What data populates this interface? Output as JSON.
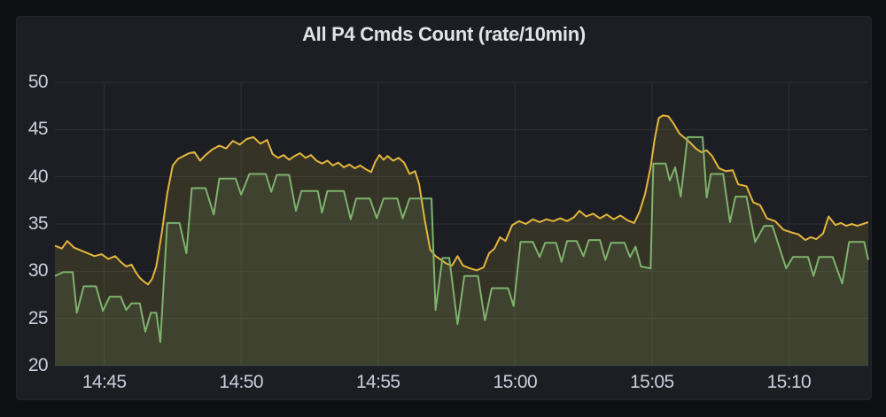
{
  "panel": {
    "title": "All P4 Cmds Count (rate/10min)"
  },
  "colors": {
    "outer_background": "#0e0f12",
    "panel_background": "#1c1e23",
    "grid": "#2d3036",
    "axis_text": "#ccccdc",
    "title_text": "#e2e3e6",
    "series_yellow": "#e3b63d",
    "series_green": "#7eb26d"
  },
  "chart_data": {
    "type": "line",
    "title": "All P4 Cmds Count (rate/10min)",
    "legend": "none",
    "x_axis": {
      "unit": "time",
      "domain_minutes": [
        0.2,
        29.9
      ],
      "ticks": [
        {
          "t": 2,
          "label": "14:45"
        },
        {
          "t": 7,
          "label": "14:50"
        },
        {
          "t": 12,
          "label": "14:55"
        },
        {
          "t": 17,
          "label": "15:00"
        },
        {
          "t": 22,
          "label": "15:05"
        },
        {
          "t": 27,
          "label": "15:10"
        }
      ],
      "grid": true
    },
    "y_axis": {
      "domain": [
        20,
        50
      ],
      "ticks": [
        20,
        25,
        30,
        35,
        40,
        45,
        50
      ],
      "grid": true
    },
    "series": [
      {
        "name": "yellow-series",
        "color": "#e3b63d",
        "fill_opacity": 0.13,
        "line_width": 2,
        "points": [
          [
            0.2,
            32.7
          ],
          [
            0.45,
            32.4
          ],
          [
            0.65,
            33.2
          ],
          [
            0.9,
            32.5
          ],
          [
            1.15,
            32.2
          ],
          [
            1.4,
            31.9
          ],
          [
            1.65,
            31.6
          ],
          [
            1.9,
            31.8
          ],
          [
            2.15,
            31.3
          ],
          [
            2.4,
            31.6
          ],
          [
            2.6,
            31.0
          ],
          [
            2.8,
            30.5
          ],
          [
            3.0,
            30.7
          ],
          [
            3.15,
            29.9
          ],
          [
            3.3,
            29.3
          ],
          [
            3.45,
            28.9
          ],
          [
            3.6,
            28.6
          ],
          [
            3.75,
            29.2
          ],
          [
            3.9,
            30.5
          ],
          [
            4.1,
            34.0
          ],
          [
            4.3,
            38.2
          ],
          [
            4.5,
            41.2
          ],
          [
            4.7,
            41.9
          ],
          [
            4.9,
            42.2
          ],
          [
            5.1,
            42.5
          ],
          [
            5.3,
            42.6
          ],
          [
            5.5,
            41.7
          ],
          [
            5.7,
            42.3
          ],
          [
            5.95,
            42.9
          ],
          [
            6.2,
            43.3
          ],
          [
            6.45,
            43.0
          ],
          [
            6.7,
            43.8
          ],
          [
            6.95,
            43.4
          ],
          [
            7.2,
            44.0
          ],
          [
            7.45,
            44.2
          ],
          [
            7.7,
            43.5
          ],
          [
            7.95,
            43.9
          ],
          [
            8.15,
            42.4
          ],
          [
            8.35,
            42.0
          ],
          [
            8.55,
            42.3
          ],
          [
            8.75,
            41.8
          ],
          [
            8.95,
            42.2
          ],
          [
            9.15,
            42.5
          ],
          [
            9.35,
            42.0
          ],
          [
            9.55,
            42.3
          ],
          [
            9.75,
            41.7
          ],
          [
            9.95,
            41.4
          ],
          [
            10.15,
            41.7
          ],
          [
            10.35,
            41.2
          ],
          [
            10.55,
            41.5
          ],
          [
            10.75,
            41.0
          ],
          [
            10.95,
            41.3
          ],
          [
            11.15,
            40.9
          ],
          [
            11.35,
            41.2
          ],
          [
            11.55,
            40.8
          ],
          [
            11.75,
            40.5
          ],
          [
            11.9,
            41.6
          ],
          [
            12.05,
            42.3
          ],
          [
            12.2,
            41.8
          ],
          [
            12.35,
            42.2
          ],
          [
            12.55,
            41.7
          ],
          [
            12.75,
            42.0
          ],
          [
            12.95,
            41.5
          ],
          [
            13.15,
            40.3
          ],
          [
            13.35,
            40.6
          ],
          [
            13.5,
            39.2
          ],
          [
            13.7,
            35.5
          ],
          [
            13.9,
            32.3
          ],
          [
            14.1,
            31.6
          ],
          [
            14.3,
            31.2
          ],
          [
            14.5,
            30.8
          ],
          [
            14.7,
            30.6
          ],
          [
            14.9,
            31.6
          ],
          [
            15.1,
            30.6
          ],
          [
            15.35,
            30.3
          ],
          [
            15.6,
            30.1
          ],
          [
            15.85,
            30.4
          ],
          [
            16.05,
            31.9
          ],
          [
            16.25,
            32.4
          ],
          [
            16.45,
            33.6
          ],
          [
            16.65,
            33.2
          ],
          [
            16.9,
            34.9
          ],
          [
            17.15,
            35.3
          ],
          [
            17.4,
            35.0
          ],
          [
            17.65,
            35.5
          ],
          [
            17.9,
            35.2
          ],
          [
            18.15,
            35.5
          ],
          [
            18.4,
            35.3
          ],
          [
            18.65,
            35.6
          ],
          [
            18.9,
            35.3
          ],
          [
            19.15,
            35.7
          ],
          [
            19.35,
            36.4
          ],
          [
            19.6,
            35.8
          ],
          [
            19.85,
            36.1
          ],
          [
            20.1,
            35.6
          ],
          [
            20.35,
            36.0
          ],
          [
            20.6,
            35.5
          ],
          [
            20.85,
            35.9
          ],
          [
            21.1,
            35.4
          ],
          [
            21.35,
            35.1
          ],
          [
            21.55,
            36.3
          ],
          [
            21.75,
            38.2
          ],
          [
            21.95,
            41.0
          ],
          [
            22.1,
            44.0
          ],
          [
            22.25,
            46.2
          ],
          [
            22.4,
            46.5
          ],
          [
            22.6,
            46.4
          ],
          [
            22.8,
            45.6
          ],
          [
            23.0,
            44.6
          ],
          [
            23.2,
            44.1
          ],
          [
            23.4,
            43.6
          ],
          [
            23.6,
            43.0
          ],
          [
            23.8,
            42.6
          ],
          [
            24.0,
            42.8
          ],
          [
            24.2,
            42.2
          ],
          [
            24.45,
            40.9
          ],
          [
            24.7,
            40.6
          ],
          [
            24.95,
            40.7
          ],
          [
            25.15,
            39.2
          ],
          [
            25.45,
            39.0
          ],
          [
            25.7,
            37.3
          ],
          [
            25.95,
            37.0
          ],
          [
            26.2,
            35.6
          ],
          [
            26.5,
            35.3
          ],
          [
            26.8,
            34.4
          ],
          [
            27.1,
            34.1
          ],
          [
            27.35,
            33.9
          ],
          [
            27.6,
            33.3
          ],
          [
            27.8,
            33.6
          ],
          [
            28.0,
            33.4
          ],
          [
            28.25,
            34.0
          ],
          [
            28.45,
            35.8
          ],
          [
            28.7,
            34.9
          ],
          [
            28.9,
            35.1
          ],
          [
            29.1,
            34.8
          ],
          [
            29.3,
            35.0
          ],
          [
            29.5,
            34.8
          ],
          [
            29.7,
            35.0
          ],
          [
            29.9,
            35.2
          ]
        ]
      },
      {
        "name": "green-series",
        "color": "#7eb26d",
        "fill_opacity": 0.13,
        "line_width": 2,
        "points": [
          [
            0.2,
            29.5
          ],
          [
            0.5,
            29.9
          ],
          [
            0.85,
            29.9
          ],
          [
            1.0,
            25.6
          ],
          [
            1.25,
            28.4
          ],
          [
            1.7,
            28.4
          ],
          [
            1.95,
            25.8
          ],
          [
            2.2,
            27.3
          ],
          [
            2.6,
            27.3
          ],
          [
            2.8,
            25.9
          ],
          [
            3.0,
            26.6
          ],
          [
            3.3,
            26.6
          ],
          [
            3.5,
            23.6
          ],
          [
            3.7,
            25.6
          ],
          [
            3.9,
            25.6
          ],
          [
            4.05,
            22.5
          ],
          [
            4.3,
            35.1
          ],
          [
            4.75,
            35.1
          ],
          [
            5.0,
            31.9
          ],
          [
            5.2,
            38.8
          ],
          [
            5.7,
            38.8
          ],
          [
            6.0,
            36.0
          ],
          [
            6.2,
            39.8
          ],
          [
            6.8,
            39.8
          ],
          [
            7.0,
            38.1
          ],
          [
            7.3,
            40.3
          ],
          [
            7.9,
            40.3
          ],
          [
            8.1,
            38.4
          ],
          [
            8.3,
            40.2
          ],
          [
            8.75,
            40.2
          ],
          [
            9.0,
            36.4
          ],
          [
            9.2,
            38.5
          ],
          [
            9.8,
            38.5
          ],
          [
            9.95,
            36.2
          ],
          [
            10.15,
            38.5
          ],
          [
            10.75,
            38.5
          ],
          [
            11.0,
            35.5
          ],
          [
            11.2,
            37.7
          ],
          [
            11.7,
            37.7
          ],
          [
            11.95,
            35.6
          ],
          [
            12.2,
            37.7
          ],
          [
            12.7,
            37.7
          ],
          [
            12.9,
            35.6
          ],
          [
            13.15,
            37.7
          ],
          [
            13.95,
            37.7
          ],
          [
            14.1,
            25.9
          ],
          [
            14.35,
            31.4
          ],
          [
            14.6,
            31.4
          ],
          [
            14.9,
            24.4
          ],
          [
            15.15,
            29.5
          ],
          [
            15.65,
            29.5
          ],
          [
            15.9,
            24.8
          ],
          [
            16.15,
            28.2
          ],
          [
            16.75,
            28.2
          ],
          [
            16.95,
            26.3
          ],
          [
            17.2,
            33.1
          ],
          [
            17.65,
            33.1
          ],
          [
            17.9,
            31.5
          ],
          [
            18.1,
            33.0
          ],
          [
            18.5,
            33.0
          ],
          [
            18.7,
            31.0
          ],
          [
            18.9,
            33.2
          ],
          [
            19.25,
            33.2
          ],
          [
            19.5,
            31.6
          ],
          [
            19.7,
            33.3
          ],
          [
            20.1,
            33.3
          ],
          [
            20.3,
            31.2
          ],
          [
            20.5,
            33.0
          ],
          [
            21.0,
            33.0
          ],
          [
            21.2,
            31.5
          ],
          [
            21.4,
            32.6
          ],
          [
            21.6,
            30.5
          ],
          [
            21.95,
            30.3
          ],
          [
            22.05,
            41.4
          ],
          [
            22.5,
            41.4
          ],
          [
            22.65,
            39.6
          ],
          [
            22.85,
            41.0
          ],
          [
            23.05,
            37.9
          ],
          [
            23.3,
            44.2
          ],
          [
            23.85,
            44.2
          ],
          [
            24.0,
            37.8
          ],
          [
            24.15,
            40.3
          ],
          [
            24.6,
            40.3
          ],
          [
            24.85,
            35.2
          ],
          [
            25.05,
            37.9
          ],
          [
            25.45,
            37.9
          ],
          [
            25.77,
            33.1
          ],
          [
            26.1,
            34.8
          ],
          [
            26.4,
            34.8
          ],
          [
            26.9,
            30.3
          ],
          [
            27.15,
            31.5
          ],
          [
            27.7,
            31.5
          ],
          [
            27.9,
            29.5
          ],
          [
            28.1,
            31.5
          ],
          [
            28.6,
            31.5
          ],
          [
            28.95,
            28.7
          ],
          [
            29.2,
            33.1
          ],
          [
            29.75,
            33.1
          ],
          [
            29.9,
            31.2
          ]
        ]
      }
    ]
  }
}
